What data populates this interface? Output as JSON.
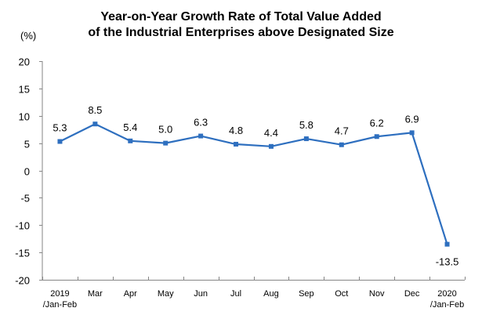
{
  "chart_data": {
    "type": "line",
    "title": [
      "Year-on-Year Growth Rate of Total Value Added",
      "of the Industrial Enterprises above Designated Size"
    ],
    "ylabel": "(%)",
    "xlabel": "",
    "ylim": [
      -20,
      20
    ],
    "yticks": [
      20,
      15,
      10,
      5,
      0,
      -5,
      -10,
      -15,
      -20
    ],
    "grid": false,
    "legend": null,
    "categories": [
      [
        "2019",
        "/Jan-Feb"
      ],
      [
        "Mar"
      ],
      [
        "Apr"
      ],
      [
        "May"
      ],
      [
        "Jun"
      ],
      [
        "Jul"
      ],
      [
        "Aug"
      ],
      [
        "Sep"
      ],
      [
        "Oct"
      ],
      [
        "Nov"
      ],
      [
        "Dec"
      ],
      [
        "2020",
        "/Jan-Feb"
      ]
    ],
    "series": [
      {
        "name": "Growth rate",
        "color": "#2e6fbf",
        "values": [
          5.3,
          8.5,
          5.4,
          5.0,
          6.3,
          4.8,
          4.4,
          5.8,
          4.7,
          6.2,
          6.9,
          -13.5
        ],
        "labels": [
          "5.3",
          "8.5",
          "5.4",
          "5.0",
          "6.3",
          "4.8",
          "4.4",
          "5.8",
          "4.7",
          "6.2",
          "6.9",
          "-13.5"
        ]
      }
    ]
  }
}
